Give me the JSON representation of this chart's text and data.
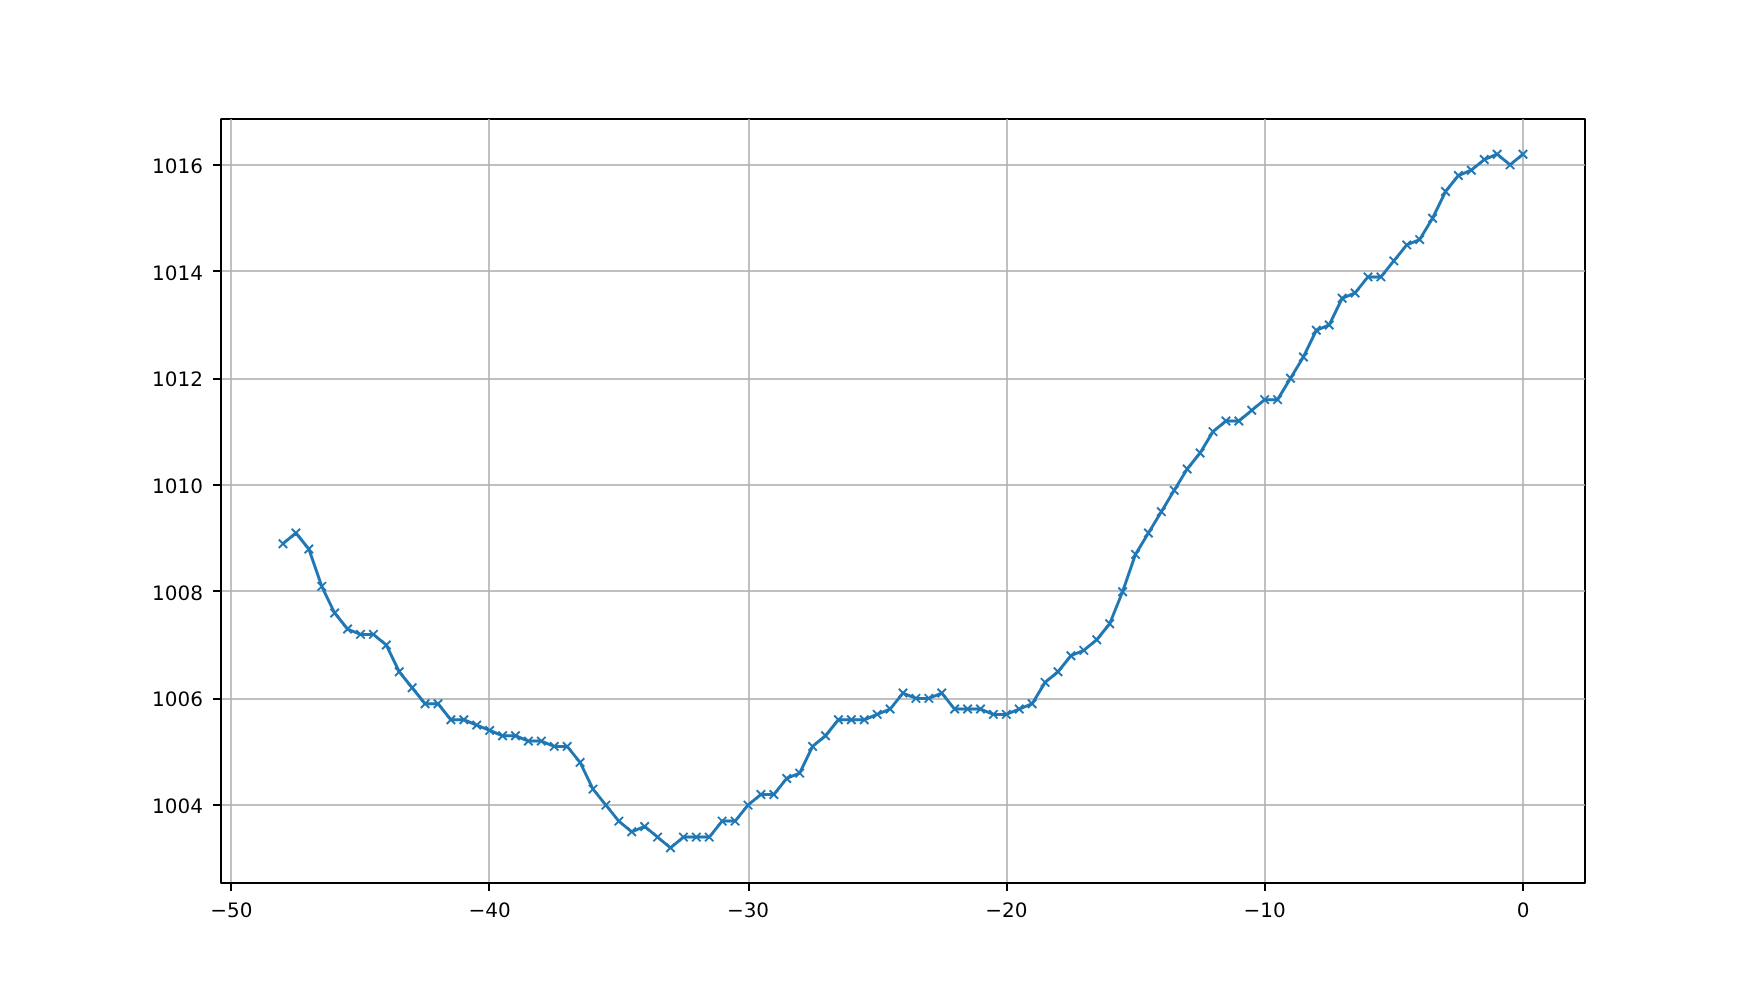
{
  "chart_data": {
    "type": "line",
    "x": [
      -48,
      -47.5,
      -47,
      -46.5,
      -46,
      -45.5,
      -45,
      -44.5,
      -44,
      -43.5,
      -43,
      -42.5,
      -42,
      -41.5,
      -41,
      -40.5,
      -40,
      -39.5,
      -39,
      -38.5,
      -38,
      -37.5,
      -37,
      -36.5,
      -36,
      -35.5,
      -35,
      -34.5,
      -34,
      -33.5,
      -33,
      -32.5,
      -32,
      -31.5,
      -31,
      -30.5,
      -30,
      -29.5,
      -29,
      -28.5,
      -28,
      -27.5,
      -27,
      -26.5,
      -26,
      -25.5,
      -25,
      -24.5,
      -24,
      -23.5,
      -23,
      -22.5,
      -22,
      -21.5,
      -21,
      -20.5,
      -20,
      -19.5,
      -19,
      -18.5,
      -18,
      -17.5,
      -17,
      -16.5,
      -16,
      -15.5,
      -15,
      -14.5,
      -14,
      -13.5,
      -13,
      -12.5,
      -12,
      -11.5,
      -11,
      -10.5,
      -10,
      -9.5,
      -9,
      -8.5,
      -8,
      -7.5,
      -7,
      -6.5,
      -6,
      -5.5,
      -5,
      -4.5,
      -4,
      -3.5,
      -3,
      -2.5,
      -2,
      -1.5,
      -1,
      -0.5,
      0
    ],
    "series": [
      {
        "color": "#1f77b4",
        "values": [
          1008.9,
          1009.1,
          1008.8,
          1008.1,
          1007.6,
          1007.3,
          1007.2,
          1007.2,
          1007.0,
          1006.5,
          1006.2,
          1005.9,
          1005.9,
          1005.6,
          1005.6,
          1005.5,
          1005.4,
          1005.3,
          1005.3,
          1005.2,
          1005.2,
          1005.1,
          1005.1,
          1004.8,
          1004.3,
          1004.0,
          1003.7,
          1003.5,
          1003.6,
          1003.4,
          1003.2,
          1003.4,
          1003.4,
          1003.4,
          1003.7,
          1003.7,
          1004.0,
          1004.2,
          1004.2,
          1004.5,
          1004.6,
          1005.1,
          1005.3,
          1005.6,
          1005.6,
          1005.6,
          1005.7,
          1005.8,
          1006.1,
          1006.0,
          1006.0,
          1006.1,
          1005.8,
          1005.8,
          1005.8,
          1005.7,
          1005.7,
          1005.8,
          1005.9,
          1006.3,
          1006.5,
          1006.8,
          1006.9,
          1007.1,
          1007.4,
          1008.0,
          1008.7,
          1009.1,
          1009.5,
          1009.9,
          1010.3,
          1010.6,
          1011.0,
          1011.2,
          1011.2,
          1011.4,
          1011.6,
          1011.6,
          1012.0,
          1012.4,
          1012.9,
          1013.0,
          1013.5,
          1013.6,
          1013.9,
          1013.9,
          1014.2,
          1014.5,
          1014.6,
          1015.0,
          1015.5,
          1015.8,
          1015.9,
          1016.1,
          1016.2,
          1016.0,
          1016.2
        ]
      }
    ],
    "xlim": [
      -50.4,
      2.4
    ],
    "ylim": [
      1002.54,
      1016.86
    ],
    "xticks": [
      {
        "value": -50,
        "label": "−50"
      },
      {
        "value": -40,
        "label": "−40"
      },
      {
        "value": -30,
        "label": "−30"
      },
      {
        "value": -20,
        "label": "−20"
      },
      {
        "value": -10,
        "label": "−10"
      },
      0
    ],
    "yticks": [
      1004,
      1006,
      1008,
      1010,
      1012,
      1014,
      1016
    ],
    "grid": true,
    "marker": "cross",
    "line_style": "solid"
  }
}
